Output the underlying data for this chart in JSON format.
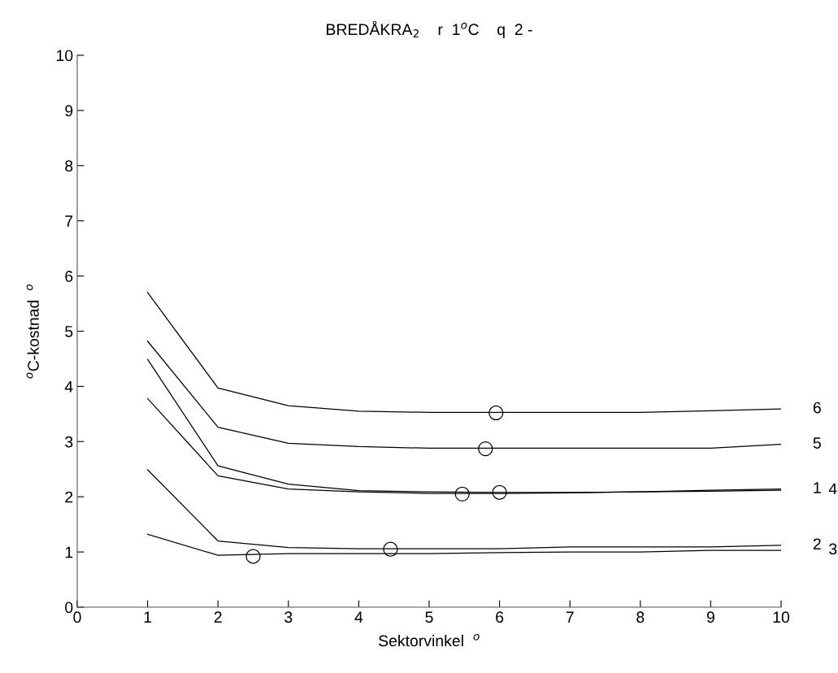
{
  "chart_data": {
    "type": "line",
    "title": "BREDÅKRA$_{2}$    r  1$^{o}$C    q  2 -",
    "xlabel": "Sektorvinkel  $^{o}$",
    "ylabel": "$^{o}$C-kostnad  $^{o}$",
    "x": [
      1,
      2,
      3,
      4,
      5,
      6,
      7,
      8,
      9,
      10
    ],
    "series": [
      {
        "name": "6",
        "color": "#000000",
        "values": [
          5.7,
          3.97,
          3.65,
          3.55,
          3.53,
          3.53,
          3.53,
          3.53,
          3.56,
          3.59
        ]
      },
      {
        "name": "5",
        "color": "#000000",
        "values": [
          4.82,
          3.26,
          2.97,
          2.91,
          2.88,
          2.88,
          2.88,
          2.88,
          2.88,
          2.95
        ]
      },
      {
        "name": "1",
        "color": "#000000",
        "values": [
          3.78,
          2.38,
          2.14,
          2.09,
          2.06,
          2.06,
          2.07,
          2.09,
          2.12,
          2.14
        ]
      },
      {
        "name": "4",
        "color": "#000000",
        "values": [
          4.49,
          2.56,
          2.23,
          2.11,
          2.09,
          2.08,
          2.08,
          2.09,
          2.1,
          2.12
        ]
      },
      {
        "name": "2",
        "color": "#000000",
        "values": [
          2.49,
          1.2,
          1.08,
          1.06,
          1.06,
          1.06,
          1.09,
          1.09,
          1.09,
          1.12
        ]
      },
      {
        "name": "3",
        "color": "#000000",
        "values": [
          1.32,
          0.94,
          0.97,
          0.97,
          0.97,
          0.99,
          1.0,
          1.0,
          1.03,
          1.03
        ]
      },
      {
        "type": "scatter",
        "marker": "circle",
        "color": "#000000",
        "x": [
          5.95,
          5.8,
          5.47,
          6.0,
          4.45,
          2.5
        ],
        "values": [
          3.52,
          2.87,
          2.05,
          2.08,
          1.05,
          0.92
        ]
      }
    ],
    "xlim": [
      0,
      10
    ],
    "ylim": [
      0,
      10
    ],
    "xticks": [
      0,
      1,
      2,
      3,
      4,
      5,
      6,
      7,
      8,
      9,
      10
    ],
    "yticks": [
      0,
      1,
      2,
      3,
      4,
      5,
      6,
      7,
      8,
      9,
      10
    ],
    "grid": false,
    "legend": false,
    "marker": "none",
    "line_style": "solid"
  }
}
